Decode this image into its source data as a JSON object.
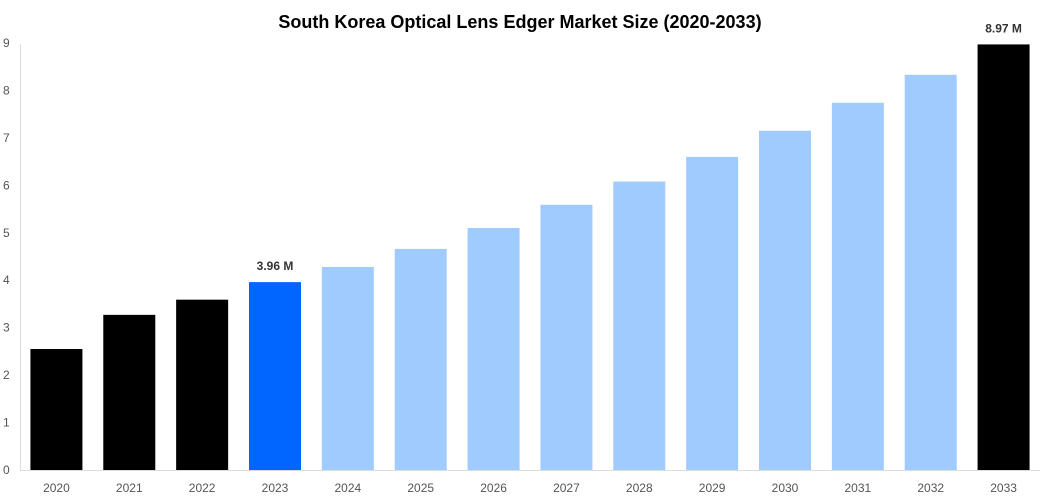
{
  "chart_data": {
    "type": "bar",
    "title": "South Korea Optical Lens Edger Market Size (2020-2033)",
    "xlabel": "",
    "ylabel": "",
    "ylim": [
      0,
      9
    ],
    "yticks": [
      "0",
      "1",
      "2",
      "3",
      "4",
      "5",
      "6",
      "7",
      "8",
      "9"
    ],
    "grid": false,
    "categories": [
      "2020",
      "2021",
      "2022",
      "2023",
      "2024",
      "2025",
      "2026",
      "2027",
      "2028",
      "2029",
      "2030",
      "2031",
      "2032",
      "2033"
    ],
    "values": [
      2.55,
      3.27,
      3.59,
      3.96,
      4.28,
      4.66,
      5.1,
      5.59,
      6.08,
      6.6,
      7.15,
      7.74,
      8.33,
      8.97
    ],
    "bar_colors": [
      "#000000",
      "#000000",
      "#000000",
      "#0066ff",
      "#a0cbff",
      "#a0cbff",
      "#a0cbff",
      "#a0cbff",
      "#a0cbff",
      "#a0cbff",
      "#a0cbff",
      "#a0cbff",
      "#a0cbff",
      "#000000"
    ],
    "data_labels": {
      "3": "3.96 M",
      "13": "8.97 M"
    }
  }
}
